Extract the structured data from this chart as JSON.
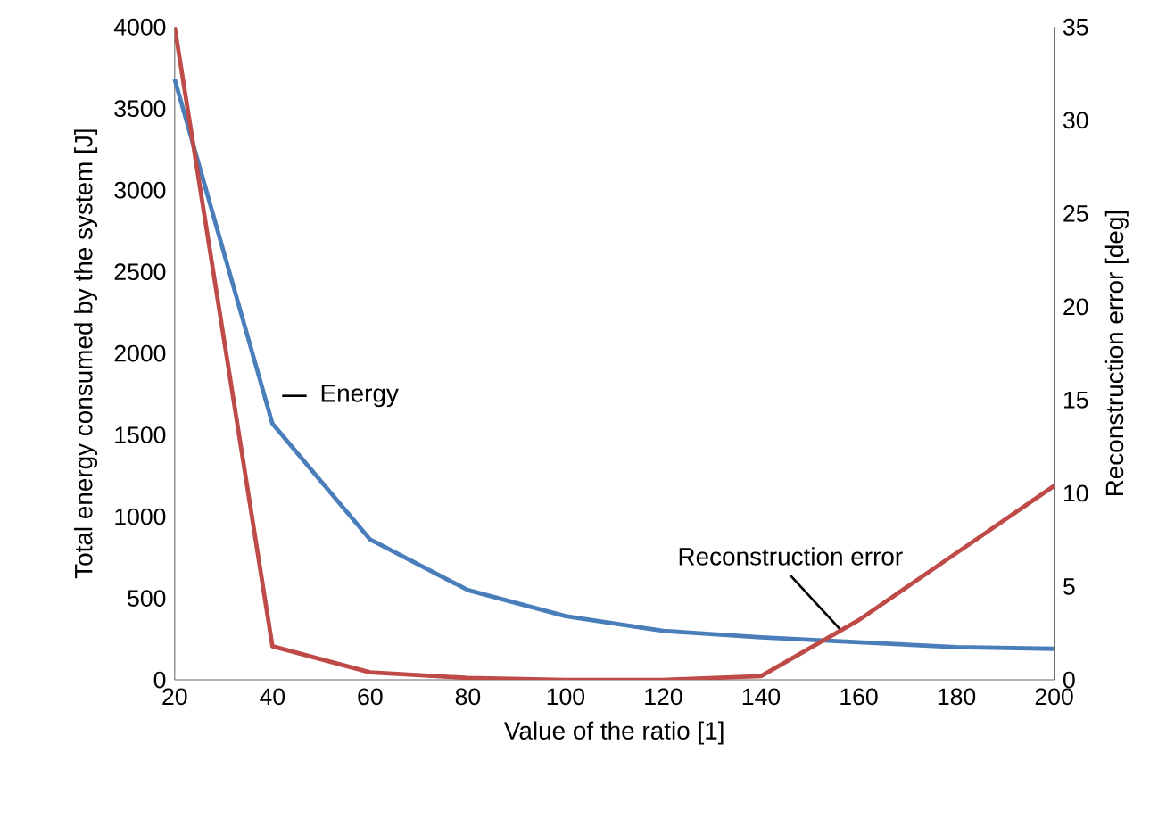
{
  "chart_data": {
    "type": "line",
    "xlabel": "Value of the ratio [1]",
    "ylabel": "Total energy consumed by the system [J]",
    "y2label": "Reconstruction error  [deg]",
    "x": [
      20,
      40,
      60,
      80,
      100,
      120,
      140,
      160,
      180,
      200
    ],
    "series": [
      {
        "name": "Energy",
        "color": "#4a7ebb",
        "values": [
          3680,
          1570,
          860,
          550,
          390,
          300,
          260,
          230,
          200,
          190
        ]
      },
      {
        "name": "Reconstruction error",
        "color": "#be4b48",
        "axis": "y2",
        "values": [
          35,
          1.8,
          0.4,
          0.1,
          0,
          0,
          0.2,
          3.2,
          6.8,
          10.4
        ]
      }
    ],
    "xlim": [
      20,
      200
    ],
    "xticks": [
      20,
      40,
      60,
      80,
      100,
      120,
      140,
      160,
      180,
      200
    ],
    "ylim": [
      0,
      4000
    ],
    "yticks": [
      0,
      500,
      1000,
      1500,
      2000,
      2500,
      3000,
      3500,
      4000
    ],
    "y2lim": [
      0,
      35
    ],
    "y2ticks": [
      0,
      5,
      10,
      15,
      20,
      25,
      30,
      35
    ],
    "grid": false,
    "marker": "none",
    "line_style": "solid"
  }
}
